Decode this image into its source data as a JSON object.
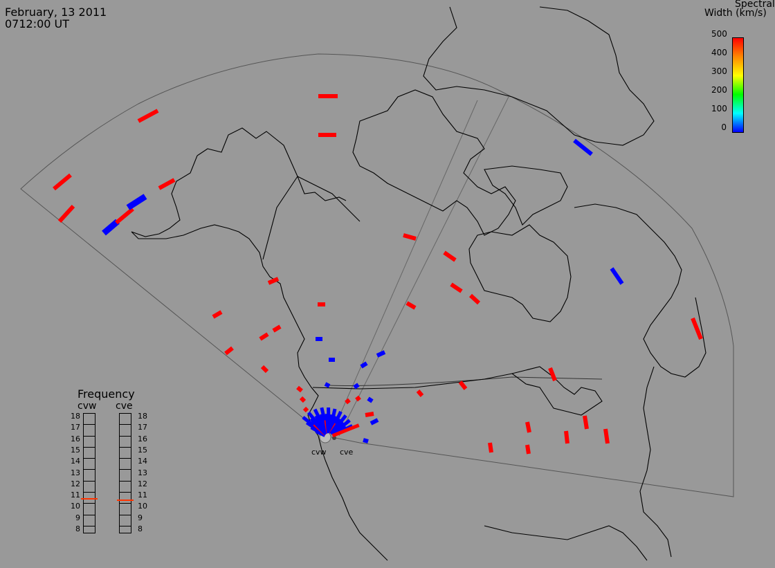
{
  "header": {
    "date": "February, 13 2011",
    "time": "0712:00 UT"
  },
  "colorbar": {
    "title_line1": "Spectral",
    "title_line2": "Width (km/s)",
    "ticks": [
      "500",
      "400",
      "300",
      "200",
      "100",
      "0"
    ],
    "colors": [
      "#0000ff",
      "#00ffff",
      "#00ff00",
      "#ffff00",
      "#ff8800",
      "#ff0000"
    ]
  },
  "frequency": {
    "title": "Frequency",
    "radars": [
      {
        "name": "cvw",
        "value_mhz": 10.8
      },
      {
        "name": "cve",
        "value_mhz": 10.7
      }
    ],
    "scale": [
      "18",
      "17",
      "16",
      "15",
      "14",
      "13",
      "12",
      "11",
      "10",
      "9",
      "8"
    ],
    "marker_color": "#ff3300"
  },
  "radar_labels": [
    "cvw",
    "cve"
  ],
  "map_colors": {
    "background": "#999999",
    "coastline": "#000000",
    "fov": "#555555",
    "high_width": "#ff0000",
    "low_width": "#0000ff"
  }
}
